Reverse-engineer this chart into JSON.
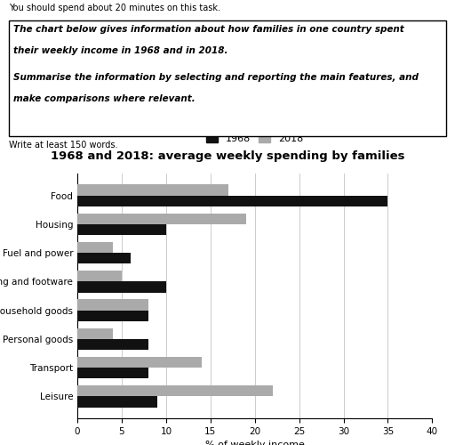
{
  "title": "1968 and 2018: average weekly spending by families",
  "categories": [
    "Food",
    "Housing",
    "Fuel and power",
    "Clothing and footware",
    "Household goods",
    "Personal goods",
    "Transport",
    "Leisure"
  ],
  "values_1968": [
    35,
    10,
    6,
    10,
    8,
    8,
    8,
    9
  ],
  "values_2018": [
    17,
    19,
    4,
    5,
    8,
    4,
    14,
    22
  ],
  "color_1968": "#111111",
  "color_2018": "#aaaaaa",
  "xlabel": "% of weekly income",
  "xlim": [
    0,
    40
  ],
  "xticks": [
    0,
    5,
    10,
    15,
    20,
    25,
    30,
    35,
    40
  ],
  "legend_labels": [
    "1968",
    "2018"
  ],
  "header_line1": "You should spend about 20 minutes on this task.",
  "header_box_line1": "The chart below gives information about how families in one country spent",
  "header_box_line2": "their weekly income in 1968 and in 2018.",
  "header_box_line3": "Summarise the information by selecting and reporting the main features, and",
  "header_box_line4": "make comparisons where relevant.",
  "footer_text": "Write at least 150 words.",
  "bg_color": "#ffffff",
  "border_color": "#000000"
}
